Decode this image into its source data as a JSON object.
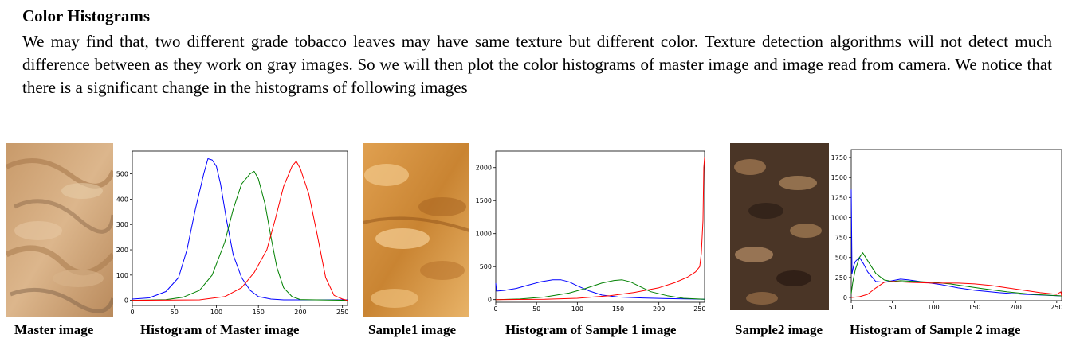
{
  "section": {
    "heading": "Color Histograms",
    "paragraph": "We may find that, two different grade tobacco leaves may have same texture but different color. Texture detection algorithms will not detect much difference between as they work on gray images. So we will then plot the color histograms of master image and image read from camera. We notice that there is a significant change in the histograms of following images"
  },
  "figures": {
    "master_caption": "Master image",
    "hist_master_caption": "Histogram of Master image",
    "sample1_caption": "Sample1 image",
    "hist_sample1_caption": "Histogram of Sample 1 image",
    "sample2_caption": "Sample2 image",
    "hist_sample2_caption": "Histogram of Sample 2 image"
  },
  "colors": {
    "blue_channel": "#0000ff",
    "green_channel": "#008000",
    "red_channel": "#ff0000"
  },
  "chart_data": [
    {
      "type": "line",
      "xlim": [
        0,
        256
      ],
      "ylim": [
        -20,
        590
      ],
      "xticks": [
        0,
        50,
        100,
        150,
        200,
        250
      ],
      "yticks": [
        0,
        100,
        200,
        300,
        400,
        500
      ],
      "series": [
        {
          "color": "blue",
          "x": [
            0,
            20,
            40,
            55,
            65,
            75,
            85,
            90,
            95,
            100,
            105,
            112,
            120,
            130,
            140,
            150,
            165,
            180,
            256
          ],
          "values": [
            5,
            10,
            35,
            90,
            200,
            360,
            500,
            560,
            555,
            530,
            460,
            320,
            180,
            90,
            40,
            15,
            5,
            2,
            2
          ]
        },
        {
          "color": "green",
          "x": [
            0,
            40,
            60,
            80,
            95,
            110,
            120,
            130,
            140,
            145,
            150,
            158,
            165,
            172,
            180,
            190,
            200,
            256
          ],
          "values": [
            0,
            3,
            12,
            40,
            100,
            230,
            360,
            460,
            500,
            510,
            480,
            380,
            250,
            130,
            50,
            15,
            3,
            0
          ]
        },
        {
          "color": "red",
          "x": [
            0,
            80,
            110,
            130,
            145,
            160,
            170,
            180,
            190,
            195,
            200,
            210,
            220,
            230,
            240,
            250,
            256
          ],
          "values": [
            0,
            2,
            15,
            50,
            110,
            200,
            320,
            450,
            530,
            550,
            520,
            420,
            260,
            90,
            20,
            5,
            0
          ]
        }
      ]
    },
    {
      "type": "line",
      "xlim": [
        0,
        256
      ],
      "ylim": [
        -40,
        2250
      ],
      "xticks": [
        0,
        50,
        100,
        150,
        200,
        250
      ],
      "yticks": [
        0,
        500,
        1000,
        1500,
        2000
      ],
      "series": [
        {
          "color": "blue",
          "x": [
            0,
            1,
            10,
            25,
            40,
            55,
            70,
            80,
            90,
            100,
            115,
            130,
            150,
            180,
            210,
            240,
            256
          ],
          "values": [
            250,
            130,
            140,
            170,
            220,
            270,
            300,
            300,
            270,
            210,
            130,
            70,
            40,
            25,
            15,
            10,
            5
          ]
        },
        {
          "color": "green",
          "x": [
            0,
            30,
            60,
            90,
            110,
            130,
            145,
            155,
            165,
            175,
            190,
            210,
            230,
            256
          ],
          "values": [
            0,
            10,
            40,
            100,
            170,
            250,
            290,
            300,
            270,
            210,
            120,
            60,
            20,
            5
          ]
        },
        {
          "color": "red",
          "x": [
            0,
            60,
            100,
            140,
            170,
            200,
            220,
            235,
            245,
            250,
            252,
            254,
            255,
            256
          ],
          "values": [
            0,
            5,
            20,
            60,
            110,
            180,
            260,
            340,
            420,
            500,
            700,
            1200,
            2000,
            2150
          ]
        }
      ]
    },
    {
      "type": "line",
      "xlim": [
        0,
        256
      ],
      "ylim": [
        -40,
        1850
      ],
      "xticks": [
        0,
        50,
        100,
        150,
        200,
        250
      ],
      "yticks": [
        0,
        250,
        500,
        750,
        1000,
        1250,
        1500,
        1750
      ],
      "series": [
        {
          "color": "blue",
          "x": [
            0,
            1,
            3,
            5,
            10,
            15,
            20,
            30,
            40,
            50,
            60,
            70,
            90,
            110,
            130,
            150,
            180,
            210,
            256
          ],
          "values": [
            1350,
            300,
            400,
            450,
            500,
            420,
            320,
            200,
            190,
            210,
            230,
            220,
            190,
            160,
            120,
            90,
            60,
            40,
            20
          ]
        },
        {
          "color": "green",
          "x": [
            0,
            2,
            5,
            10,
            14,
            20,
            30,
            40,
            50,
            60,
            80,
            100,
            120,
            140,
            160,
            190,
            220,
            256
          ],
          "values": [
            50,
            200,
            350,
            500,
            560,
            460,
            300,
            220,
            200,
            210,
            200,
            190,
            170,
            140,
            110,
            70,
            40,
            20
          ]
        },
        {
          "color": "red",
          "x": [
            0,
            10,
            20,
            30,
            40,
            50,
            70,
            100,
            130,
            150,
            170,
            190,
            210,
            230,
            250,
            255,
            256
          ],
          "values": [
            0,
            10,
            40,
            120,
            190,
            200,
            190,
            180,
            180,
            170,
            150,
            120,
            90,
            60,
            40,
            70,
            20
          ]
        }
      ]
    }
  ]
}
